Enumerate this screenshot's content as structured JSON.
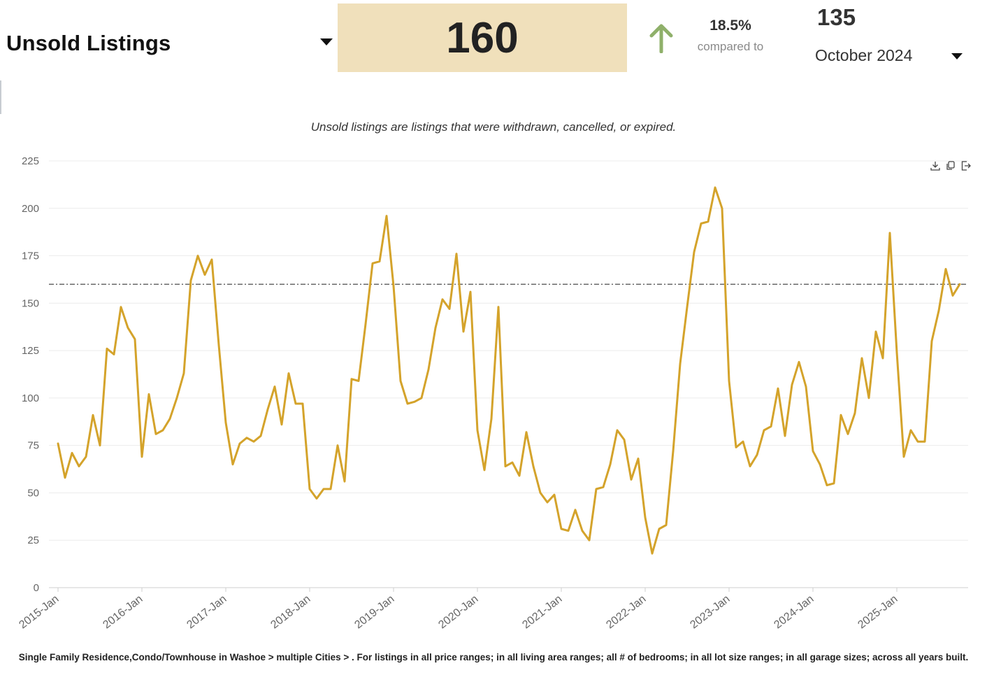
{
  "header": {
    "metric_label": "Unsold Listings",
    "current_value": "160",
    "change_percent": "18.5%",
    "change_note": "compared to",
    "compare_value": "135",
    "compare_period": "October 2024",
    "arrow_color": "#8fb06a",
    "value_box_color": "#f0e0bb"
  },
  "subtitle": "Unsold listings are listings that were withdrawn, cancelled, or expired.",
  "toolbar": {
    "icons": [
      "download-icon",
      "copy-icon",
      "export-icon"
    ]
  },
  "footnote": "Single Family Residence,Condo/Townhouse in Washoe > multiple Cities > . For listings in all price ranges; in all living area ranges; all # of bedrooms; in all lot size ranges; in all garage sizes; across all years built.",
  "chart_data": {
    "type": "line",
    "title": "",
    "xlabel": "",
    "ylabel": "",
    "ylim": [
      0,
      225
    ],
    "yticks": [
      0,
      25,
      50,
      75,
      100,
      125,
      150,
      175,
      200,
      225
    ],
    "xtick_labels": [
      "2015-Jan",
      "2016-Jan",
      "2017-Jan",
      "2018-Jan",
      "2019-Jan",
      "2020-Jan",
      "2021-Jan",
      "2022-Jan",
      "2023-Jan",
      "2024-Jan",
      "2025-Jan"
    ],
    "grid": true,
    "line_color": "#d4a32b",
    "reference_line": {
      "value": 160,
      "style": "dash-dot"
    },
    "x_start": "2015-Jan",
    "x_end": "2025-Dec",
    "series": [
      {
        "values": [
          76,
          58,
          71,
          64,
          69,
          91,
          75,
          126,
          123,
          148,
          137,
          131,
          69,
          102,
          81,
          83,
          89,
          100,
          113,
          162,
          175,
          165,
          173,
          128,
          87,
          65,
          76,
          79,
          77,
          80,
          94,
          106,
          86,
          113,
          97,
          97,
          52,
          47,
          52,
          52,
          75,
          56,
          110,
          109,
          139,
          171,
          172,
          196,
          159,
          109,
          97,
          98,
          100,
          115,
          137,
          152,
          147,
          176,
          135,
          156,
          83,
          62,
          89,
          148,
          64,
          66,
          59,
          82,
          64,
          50,
          45,
          49,
          31,
          30,
          41,
          30,
          25,
          52,
          53,
          65,
          83,
          78,
          57,
          68,
          37,
          18,
          31,
          33,
          72,
          118,
          148,
          177,
          192,
          193,
          211,
          200,
          109,
          74,
          77,
          64,
          70,
          83,
          85,
          105,
          80,
          107,
          119,
          106,
          72,
          65,
          54,
          55,
          91,
          81,
          92,
          121,
          100,
          135,
          121,
          187,
          124,
          69,
          83,
          77,
          77,
          130,
          146,
          168,
          154,
          160
        ]
      }
    ]
  }
}
